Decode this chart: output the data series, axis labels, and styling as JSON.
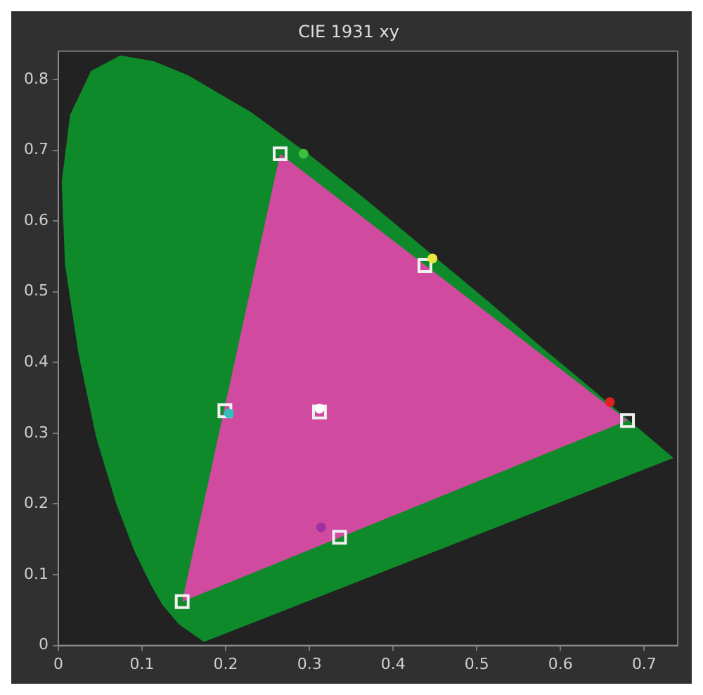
{
  "chart_data": {
    "type": "scatter",
    "title": "CIE 1931 xy",
    "xlim": [
      0,
      0.74
    ],
    "ylim": [
      0,
      0.84
    ],
    "xticks": [
      0,
      0.1,
      0.2,
      0.3,
      0.4,
      0.5,
      0.6,
      0.7
    ],
    "yticks": [
      0,
      0.1,
      0.2,
      0.3,
      0.4,
      0.5,
      0.6,
      0.7,
      0.8
    ],
    "grid": false,
    "legend": false,
    "series": [
      {
        "type": "area",
        "color": "#0f8a2a",
        "marker": "none",
        "x": [
          0.174,
          0.144,
          0.124,
          0.11,
          0.091,
          0.069,
          0.045,
          0.024,
          0.008,
          0.004,
          0.014,
          0.039,
          0.074,
          0.114,
          0.155,
          0.23,
          0.302,
          0.373,
          0.444,
          0.513,
          0.575,
          0.627,
          0.692,
          0.735,
          0.174
        ],
        "values": [
          0.005,
          0.03,
          0.058,
          0.087,
          0.133,
          0.201,
          0.295,
          0.413,
          0.538,
          0.655,
          0.75,
          0.812,
          0.834,
          0.826,
          0.806,
          0.754,
          0.692,
          0.625,
          0.555,
          0.487,
          0.424,
          0.373,
          0.308,
          0.265,
          0.005
        ]
      },
      {
        "type": "area",
        "color": "#d04aa0",
        "marker": "none",
        "x": [
          0.265,
          0.68,
          0.148,
          0.265
        ],
        "values": [
          0.695,
          0.318,
          0.062,
          0.695
        ]
      },
      {
        "type": "scatter",
        "color": "#f0f0f0",
        "marker": "square",
        "x": [
          0.265,
          0.438,
          0.68,
          0.199,
          0.312,
          0.336,
          0.148
        ],
        "values": [
          0.695,
          0.537,
          0.318,
          0.332,
          0.33,
          0.153,
          0.062
        ]
      },
      {
        "type": "scatter",
        "colors": [
          "#3cc03c",
          "#e8e840",
          "#e02020",
          "#30c0c0",
          "#ffffff",
          "#a030a0"
        ],
        "marker": "circle",
        "x": [
          0.293,
          0.447,
          0.659,
          0.204,
          0.312,
          0.314
        ],
        "values": [
          0.695,
          0.547,
          0.344,
          0.328,
          0.335,
          0.167
        ]
      }
    ]
  }
}
